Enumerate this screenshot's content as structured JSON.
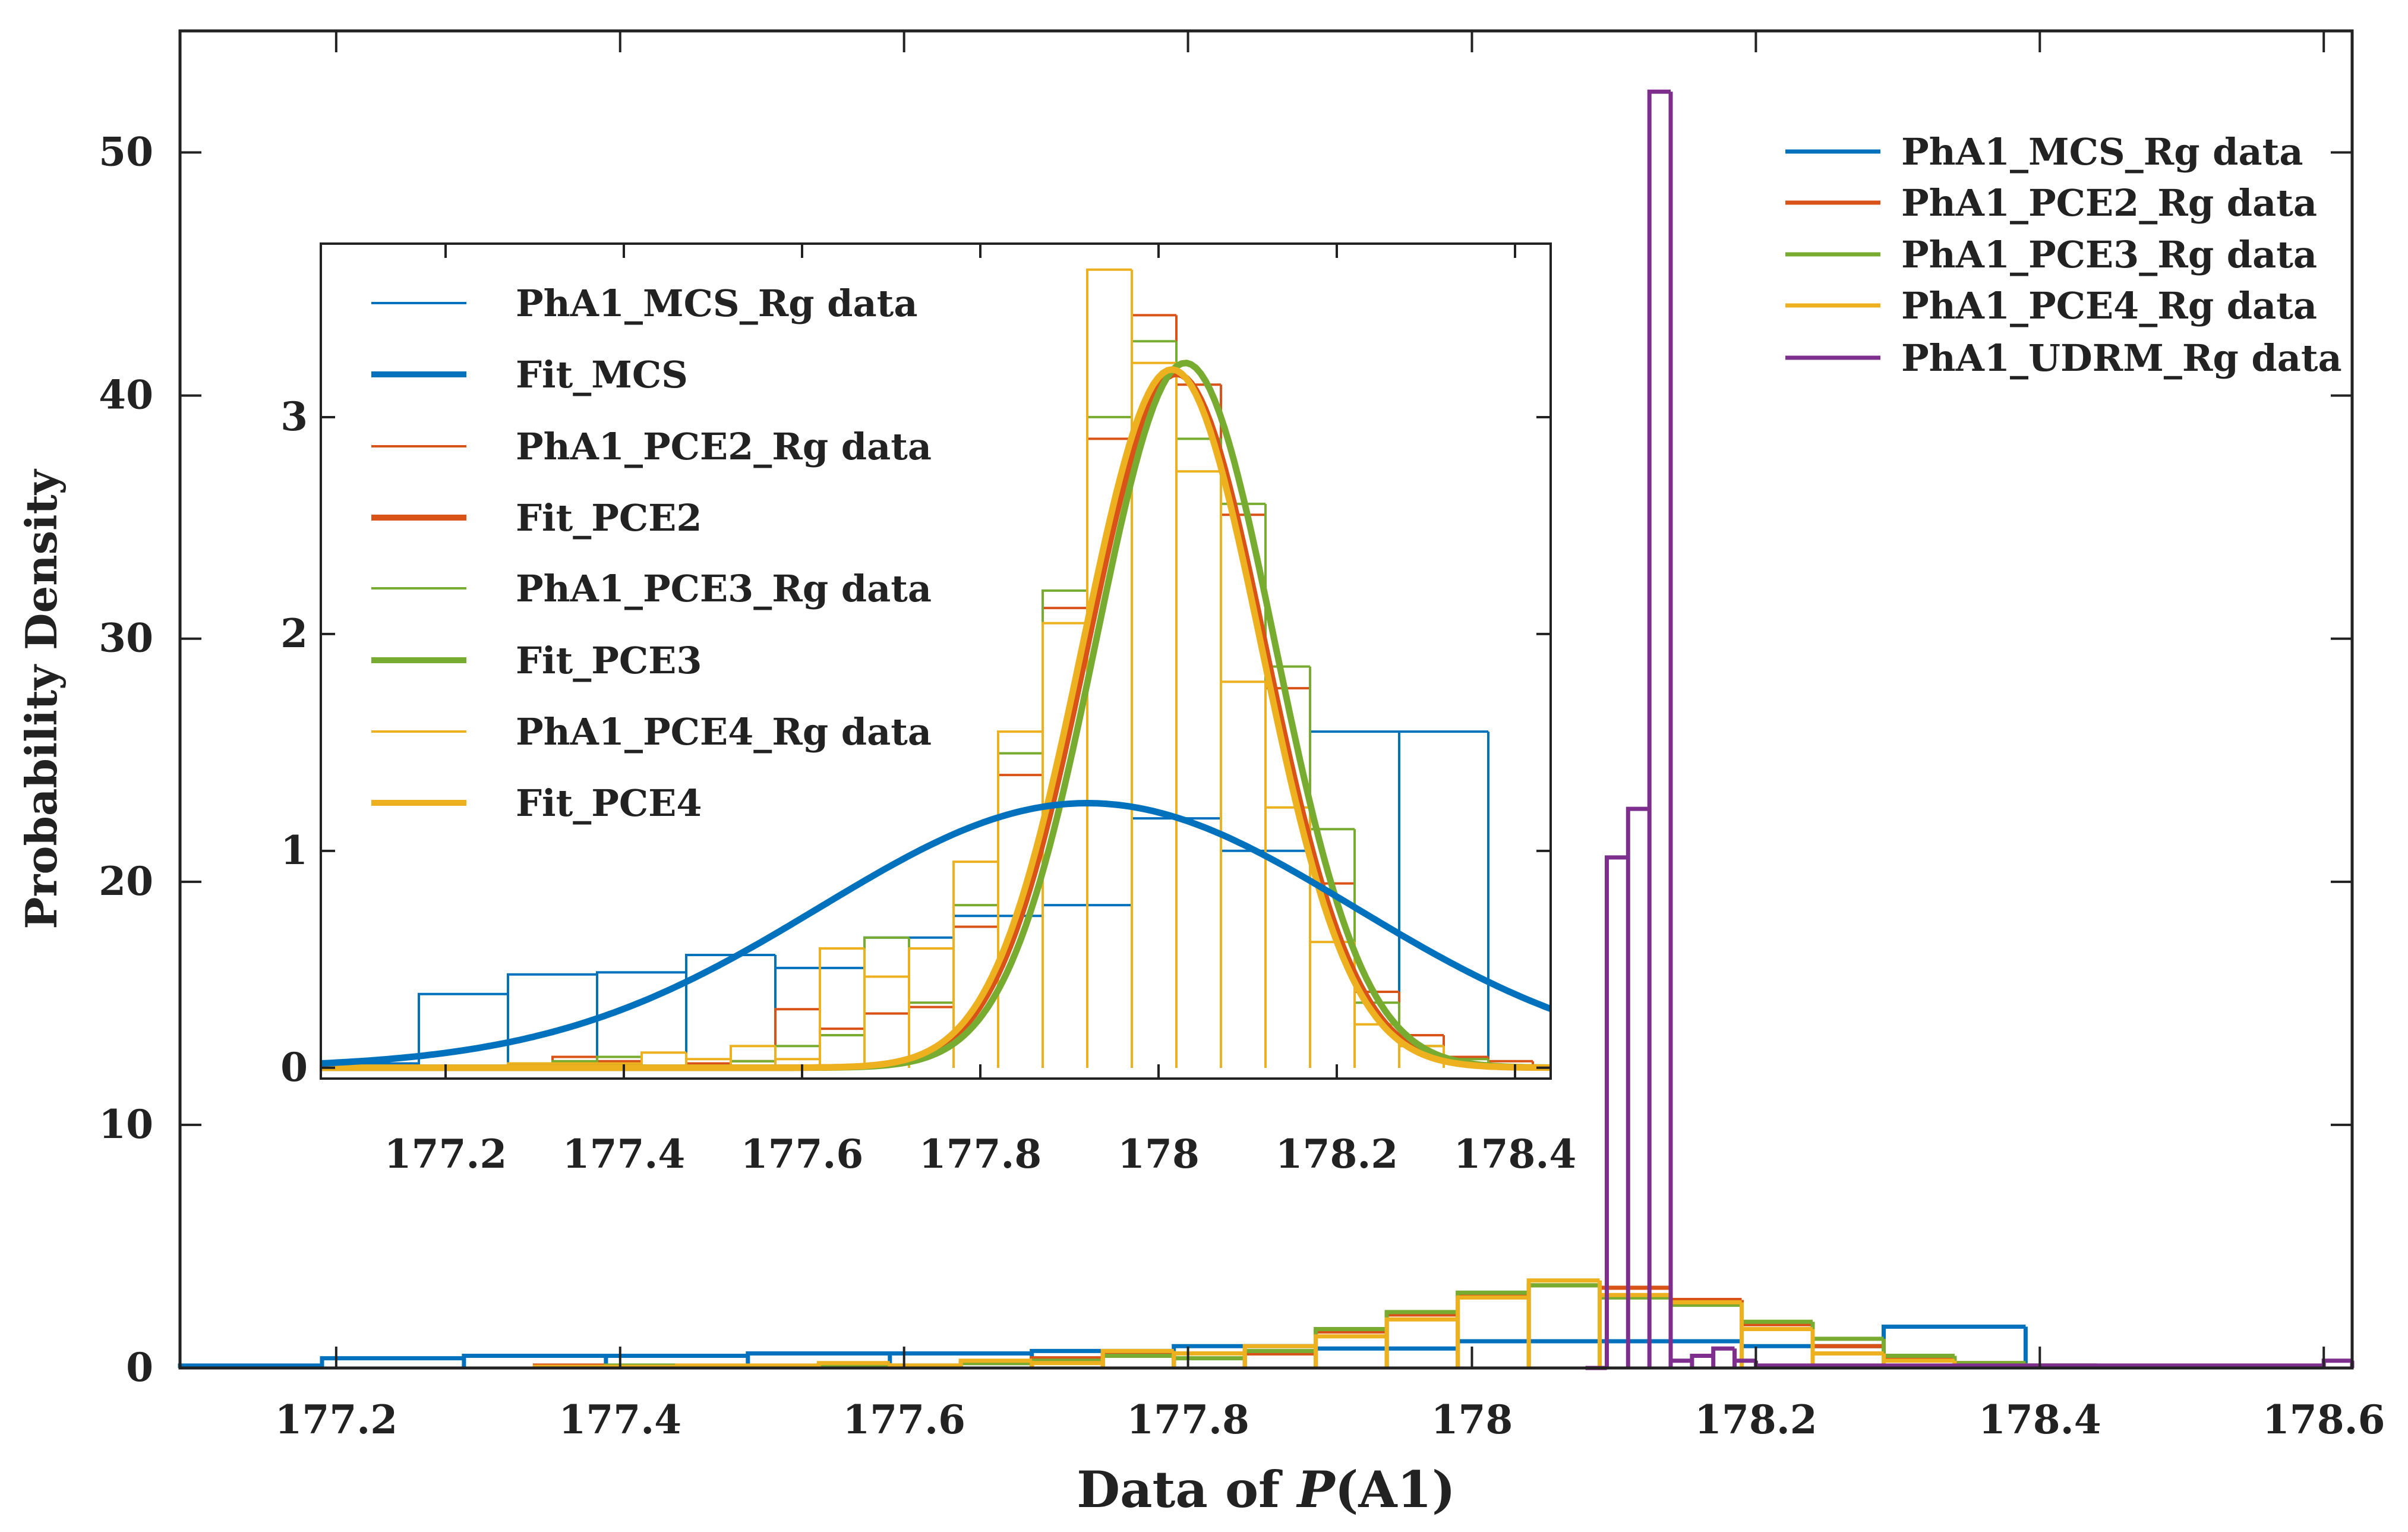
{
  "chart_data": [
    {
      "type": "histogram",
      "xlabel_prefix": "Data of ",
      "xlabel_var": "P",
      "xlabel_suffix": "(A1)",
      "ylabel": "Probability Density",
      "xlim": [
        177.09,
        178.62
      ],
      "ylim": [
        0,
        55
      ],
      "xticks": [
        177.2,
        177.4,
        177.6,
        177.8,
        178,
        178.2,
        178.4,
        178.6
      ],
      "yticks": [
        0,
        10,
        20,
        30,
        40,
        50
      ],
      "legend": [
        "PhA1_MCS_Rg data",
        "PhA1_PCE2_Rg data",
        "PhA1_PCE3_Rg data",
        "PhA1_PCE4_Rg data",
        "PhA1_UDRM_Rg data"
      ],
      "legend_position": "top-right",
      "series": [
        {
          "name": "PhA1_MCS_Rg data",
          "color": "#0072BD",
          "edges": [
            177.09,
            177.19,
            177.29,
            177.39,
            177.49,
            177.59,
            177.69,
            177.79,
            177.89,
            177.99,
            178.09,
            178.19,
            178.29,
            178.39
          ],
          "values": [
            0.1,
            0.4,
            0.5,
            0.5,
            0.6,
            0.6,
            0.7,
            0.9,
            0.8,
            1.1,
            1.1,
            0.9,
            1.7
          ]
        },
        {
          "name": "PhA1_PCE2_Rg data",
          "color": "#D95319",
          "edges": [
            177.34,
            177.39,
            177.44,
            177.49,
            177.54,
            177.59,
            177.64,
            177.69,
            177.74,
            177.79,
            177.84,
            177.89,
            177.94,
            177.99,
            178.04,
            178.09,
            178.14,
            178.19,
            178.24,
            178.29,
            178.34,
            178.39,
            178.44
          ],
          "values": [
            0.1,
            0.05,
            0.05,
            0.05,
            0.1,
            0.05,
            0.2,
            0.4,
            0.6,
            0.6,
            0.6,
            1.5,
            2.2,
            3,
            3.4,
            3.3,
            2.8,
            1.8,
            0.9,
            0.4,
            0.2,
            0.1
          ]
        },
        {
          "name": "PhA1_PCE3_Rg data",
          "color": "#77AC30",
          "edges": [
            177.34,
            177.39,
            177.44,
            177.49,
            177.54,
            177.59,
            177.64,
            177.69,
            177.74,
            177.79,
            177.84,
            177.89,
            177.94,
            177.99,
            178.04,
            178.09,
            178.14,
            178.19,
            178.24,
            178.29,
            178.34,
            178.39,
            178.44
          ],
          "values": [
            0.05,
            0.1,
            0.05,
            0.05,
            0.05,
            0.1,
            0.2,
            0.3,
            0.5,
            0.4,
            0.7,
            1.6,
            2.3,
            3.1,
            3.4,
            2.9,
            2.6,
            1.9,
            1.2,
            0.5,
            0.2,
            0.1
          ]
        },
        {
          "name": "PhA1_PCE4_Rg data",
          "color": "#EDB120",
          "edges": [
            177.34,
            177.39,
            177.44,
            177.49,
            177.54,
            177.59,
            177.64,
            177.69,
            177.74,
            177.79,
            177.84,
            177.89,
            177.94,
            177.99,
            178.04,
            178.09,
            178.14,
            178.19,
            178.24,
            178.29,
            178.34,
            178.39,
            178.44
          ],
          "values": [
            0.05,
            0.05,
            0.1,
            0.1,
            0.2,
            0.1,
            0.3,
            0.2,
            0.7,
            0.6,
            0.9,
            1.3,
            2,
            2.9,
            3.6,
            3,
            2.7,
            1.6,
            0.6,
            0.3,
            0.1,
            0.05
          ]
        },
        {
          "name": "PhA1_UDRM_Rg data",
          "color": "#7E2F8E",
          "edges": [
            178.08,
            178.095,
            178.11,
            178.125,
            178.14,
            178.155,
            178.17,
            178.185,
            178.2,
            178.6,
            178.62
          ],
          "values": [
            0,
            21,
            23,
            52.5,
            0.3,
            0.5,
            0.8,
            0.3,
            0.1,
            0.3
          ]
        }
      ]
    },
    {
      "type": "histogram",
      "role": "inset",
      "xlim": [
        177.06,
        178.44
      ],
      "ylim": [
        -0.05,
        3.8
      ],
      "xticks": [
        177.2,
        177.4,
        177.6,
        177.8,
        178,
        178.2,
        178.4
      ],
      "yticks": [
        0,
        1,
        2,
        3
      ],
      "legend": [
        "PhA1_MCS_Rg data",
        "Fit_MCS",
        "PhA1_PCE2_Rg data",
        "Fit_PCE2",
        "PhA1_PCE3_Rg data",
        "Fit_PCE3",
        "PhA1_PCE4_Rg data",
        "Fit_PCE4"
      ],
      "legend_position": "top-left",
      "series": [
        {
          "name": "PhA1_MCS_Rg data",
          "color": "#0072BD",
          "edges": [
            177.06,
            177.17,
            177.27,
            177.37,
            177.47,
            177.57,
            177.67,
            177.77,
            177.87,
            177.97,
            178.07,
            178.17,
            178.27,
            178.37
          ],
          "values": [
            0.02,
            0.34,
            0.43,
            0.44,
            0.52,
            0.46,
            0.6,
            0.7,
            0.75,
            1.15,
            1.0,
            1.55,
            1.55
          ]
        },
        {
          "name": "PhA1_PCE2_Rg data",
          "color": "#D95319",
          "edges": [
            177.06,
            177.12,
            177.17,
            177.22,
            177.27,
            177.32,
            177.37,
            177.42,
            177.47,
            177.52,
            177.57,
            177.62,
            177.67,
            177.72,
            177.77,
            177.82,
            177.87,
            177.92,
            177.97,
            178.02,
            178.07,
            178.12,
            178.17,
            178.22,
            178.27,
            178.32,
            178.37,
            178.42
          ],
          "values": [
            0,
            0,
            0,
            0,
            0,
            0.05,
            0.03,
            0,
            0.02,
            0.03,
            0.27,
            0.18,
            0.25,
            0.28,
            0.65,
            1.35,
            2.12,
            2.9,
            3.47,
            3.15,
            2.55,
            1.75,
            0.85,
            0.35,
            0.15,
            0.05,
            0.03
          ]
        },
        {
          "name": "Fit_PCE2",
          "color": "#D95319",
          "fit": "normal",
          "mu": 178.02,
          "sigma": 0.1,
          "peak": 3.2
        },
        {
          "name": "PhA1_PCE3_Rg data",
          "color": "#77AC30",
          "edges": [
            177.06,
            177.12,
            177.17,
            177.22,
            177.27,
            177.32,
            177.37,
            177.42,
            177.47,
            177.52,
            177.57,
            177.62,
            177.67,
            177.72,
            177.77,
            177.82,
            177.87,
            177.92,
            177.97,
            178.02,
            178.07,
            178.12,
            178.17,
            178.22,
            178.27,
            178.32,
            178.37,
            178.42
          ],
          "values": [
            0,
            0,
            0,
            0,
            0,
            0.03,
            0.05,
            0,
            0,
            0.03,
            0.1,
            0.15,
            0.6,
            0.3,
            0.75,
            1.45,
            2.2,
            3.0,
            3.35,
            2.9,
            2.6,
            1.85,
            1.1,
            0.3,
            0.1,
            0.04,
            0.01
          ]
        },
        {
          "name": "Fit_PCE3",
          "color": "#77AC30",
          "fit": "normal",
          "mu": 178.03,
          "sigma": 0.1,
          "peak": 3.25
        },
        {
          "name": "PhA1_PCE4_Rg data",
          "color": "#EDB120",
          "edges": [
            177.06,
            177.12,
            177.17,
            177.22,
            177.27,
            177.32,
            177.37,
            177.42,
            177.47,
            177.52,
            177.57,
            177.62,
            177.67,
            177.72,
            177.77,
            177.82,
            177.87,
            177.92,
            177.97,
            178.02,
            178.07,
            178.12,
            178.17,
            178.22,
            178.27,
            178.32,
            178.37,
            178.42
          ],
          "values": [
            0,
            0,
            0,
            0,
            0.02,
            0.02,
            0.02,
            0.07,
            0.04,
            0.1,
            0.04,
            0.55,
            0.42,
            0.55,
            0.95,
            1.55,
            2.05,
            3.68,
            3.25,
            2.75,
            1.78,
            1.2,
            0.58,
            0.2,
            0.1,
            0.02,
            0
          ]
        },
        {
          "name": "Fit_PCE4",
          "color": "#EDB120",
          "fit": "normal",
          "mu": 178.015,
          "sigma": 0.1,
          "peak": 3.22
        },
        {
          "name": "Fit_MCS",
          "color": "#0072BD",
          "fit": "normal",
          "mu": 177.92,
          "sigma": 0.3,
          "peak": 1.22
        }
      ]
    }
  ]
}
